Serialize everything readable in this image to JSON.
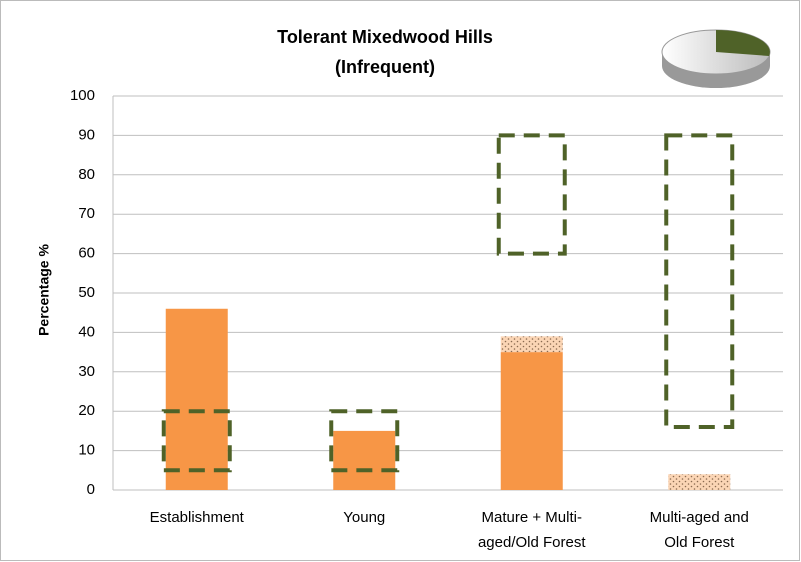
{
  "chart_data": {
    "type": "bar",
    "title": [
      "Tolerant Mixedwood Hills",
      "(Infrequent)"
    ],
    "ylabel": "Percentage %",
    "categories": [
      [
        "Establishment"
      ],
      [
        "Young"
      ],
      [
        "Mature + Multi-",
        "aged/Old Forest"
      ],
      [
        "Multi-aged and",
        "Old Forest"
      ]
    ],
    "series": [
      {
        "color": "#f79646",
        "values": [
          46,
          15,
          35,
          0
        ]
      },
      {
        "color": "#fbd5b5",
        "values": [
          0,
          0,
          4,
          4
        ]
      }
    ],
    "ranges": {
      "color": "#4f6228",
      "low": [
        5,
        5,
        60,
        16
      ],
      "high": [
        20,
        20,
        90,
        90
      ]
    },
    "ylim": [
      0,
      100
    ],
    "yticks": [
      0,
      10,
      20,
      30,
      40,
      50,
      60,
      70,
      80,
      90,
      100
    ],
    "grid": true
  }
}
